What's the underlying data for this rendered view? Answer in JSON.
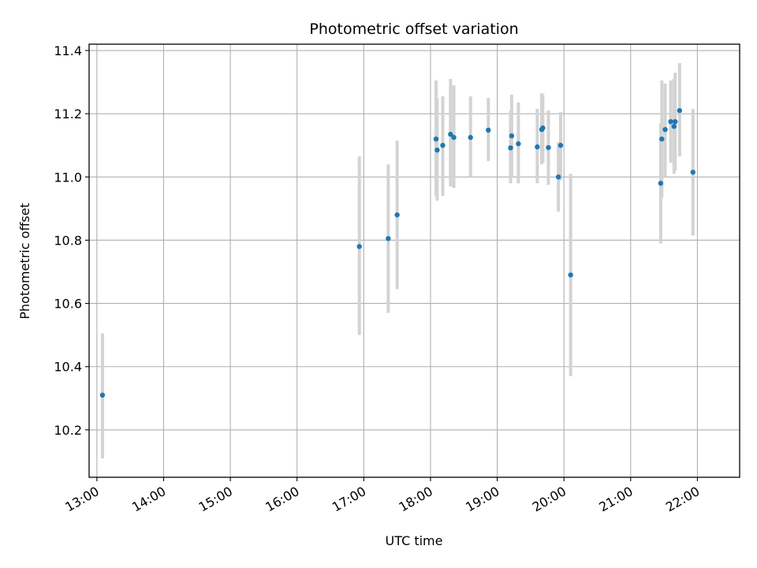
{
  "chart_data": {
    "type": "scatter",
    "title": "Photometric offset variation",
    "xlabel": "UTC time",
    "ylabel": "Photometric offset",
    "x_unit": "UTC time (HH:MM)",
    "xlim": [
      "12:53",
      "22:38"
    ],
    "ylim": [
      10.05,
      11.42
    ],
    "x_ticks": [
      "13:00",
      "14:00",
      "15:00",
      "16:00",
      "17:00",
      "18:00",
      "19:00",
      "20:00",
      "21:00",
      "22:00"
    ],
    "y_ticks": [
      10.2,
      10.4,
      10.6,
      10.8,
      11.0,
      11.2,
      11.4
    ],
    "y_tick_labels": [
      "10.2",
      "10.4",
      "10.6",
      "10.8",
      "11.0",
      "11.2",
      "11.4"
    ],
    "grid": true,
    "point_color": "#1f77b4",
    "errorbar_color": "#d3d3d3",
    "points": [
      {
        "x": "13:05",
        "y": 10.31,
        "ylow": 10.11,
        "yhigh": 10.505
      },
      {
        "x": "16:56",
        "y": 10.78,
        "ylow": 10.5,
        "yhigh": 11.065
      },
      {
        "x": "17:22",
        "y": 10.805,
        "ylow": 10.57,
        "yhigh": 11.04
      },
      {
        "x": "17:30",
        "y": 10.88,
        "ylow": 10.645,
        "yhigh": 11.115
      },
      {
        "x": "18:05",
        "y": 11.12,
        "ylow": 10.94,
        "yhigh": 11.305
      },
      {
        "x": "18:06",
        "y": 11.085,
        "ylow": 10.925,
        "yhigh": 11.25
      },
      {
        "x": "18:11",
        "y": 11.1,
        "ylow": 10.94,
        "yhigh": 11.255
      },
      {
        "x": "18:18",
        "y": 11.135,
        "ylow": 10.97,
        "yhigh": 11.31
      },
      {
        "x": "18:21",
        "y": 11.125,
        "ylow": 10.965,
        "yhigh": 11.29
      },
      {
        "x": "18:36",
        "y": 11.125,
        "ylow": 11.0,
        "yhigh": 11.255
      },
      {
        "x": "18:52",
        "y": 11.148,
        "ylow": 11.05,
        "yhigh": 11.25
      },
      {
        "x": "19:12",
        "y": 11.092,
        "ylow": 10.98,
        "yhigh": 11.21
      },
      {
        "x": "19:13",
        "y": 11.13,
        "ylow": 11.0,
        "yhigh": 11.26
      },
      {
        "x": "19:19",
        "y": 11.105,
        "ylow": 10.98,
        "yhigh": 11.235
      },
      {
        "x": "19:36",
        "y": 11.095,
        "ylow": 10.98,
        "yhigh": 11.215
      },
      {
        "x": "19:40",
        "y": 11.15,
        "ylow": 11.04,
        "yhigh": 11.265
      },
      {
        "x": "19:41",
        "y": 11.155,
        "ylow": 11.045,
        "yhigh": 11.26
      },
      {
        "x": "19:46",
        "y": 11.093,
        "ylow": 10.975,
        "yhigh": 11.21
      },
      {
        "x": "19:55",
        "y": 11.0,
        "ylow": 10.89,
        "yhigh": 11.11
      },
      {
        "x": "19:57",
        "y": 11.1,
        "ylow": 10.99,
        "yhigh": 11.205
      },
      {
        "x": "20:06",
        "y": 10.69,
        "ylow": 10.37,
        "yhigh": 11.01
      },
      {
        "x": "21:27",
        "y": 10.98,
        "ylow": 10.79,
        "yhigh": 11.17
      },
      {
        "x": "21:28",
        "y": 11.12,
        "ylow": 10.935,
        "yhigh": 11.305
      },
      {
        "x": "21:31",
        "y": 11.15,
        "ylow": 11.0,
        "yhigh": 11.295
      },
      {
        "x": "21:36",
        "y": 11.175,
        "ylow": 11.045,
        "yhigh": 11.305
      },
      {
        "x": "21:39",
        "y": 11.16,
        "ylow": 11.01,
        "yhigh": 11.31
      },
      {
        "x": "21:40",
        "y": 11.175,
        "ylow": 11.02,
        "yhigh": 11.33
      },
      {
        "x": "21:44",
        "y": 11.21,
        "ylow": 11.065,
        "yhigh": 11.36
      },
      {
        "x": "21:56",
        "y": 11.015,
        "ylow": 10.815,
        "yhigh": 11.215
      }
    ]
  }
}
